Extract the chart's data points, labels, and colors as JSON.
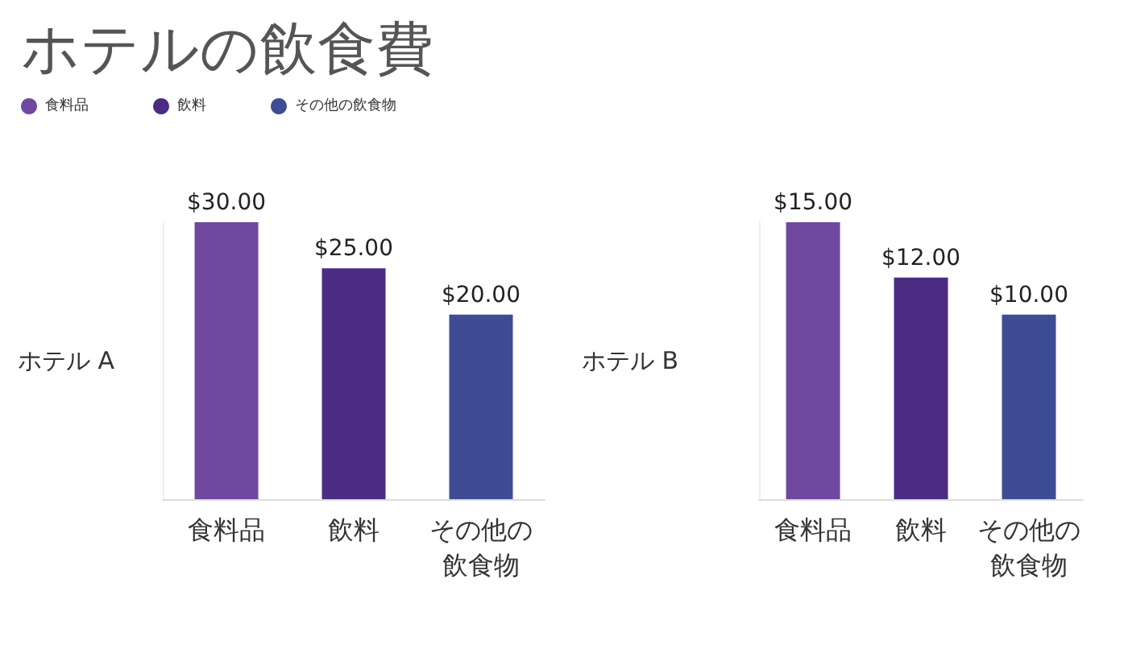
{
  "chart_data": [
    {
      "type": "bar",
      "title": "ホテルの飲食費",
      "ylabel": "ホテル A",
      "categories": [
        "食料品",
        "飲料",
        "その他の飲食物"
      ],
      "stacked": true,
      "legend": "top left",
      "grid": false,
      "series": [
        {
          "name": "食料品",
          "color": "#7048a0",
          "values": [
            30,
            null,
            null
          ],
          "value_labels": [
            "$30.00",
            null,
            null
          ]
        },
        {
          "name": "飲料",
          "color": "#4b2c82",
          "values": [
            null,
            25,
            null
          ],
          "value_labels": [
            null,
            "$25.00",
            null
          ]
        },
        {
          "name": "その他の飲食物",
          "color": "#3e4d93",
          "values": [
            null,
            null,
            20
          ],
          "value_labels": [
            null,
            null,
            "$20.00"
          ]
        }
      ]
    },
    {
      "type": "bar",
      "ylabel": "ホテル B",
      "categories": [
        "食料品",
        "飲料",
        "その他の飲食物"
      ],
      "stacked": true,
      "grid": false,
      "series": [
        {
          "color": "#7048a0",
          "values": [
            15,
            null,
            null
          ],
          "value_labels": [
            "$15.00",
            null,
            null
          ]
        },
        {
          "color": "#4b2c82",
          "values": [
            null,
            12,
            null
          ],
          "value_labels": [
            null,
            "$12.00",
            null
          ]
        },
        {
          "color": "#3e4d93",
          "values": [
            null,
            null,
            10
          ],
          "value_labels": [
            null,
            null,
            "$10.00"
          ]
        }
      ]
    }
  ]
}
